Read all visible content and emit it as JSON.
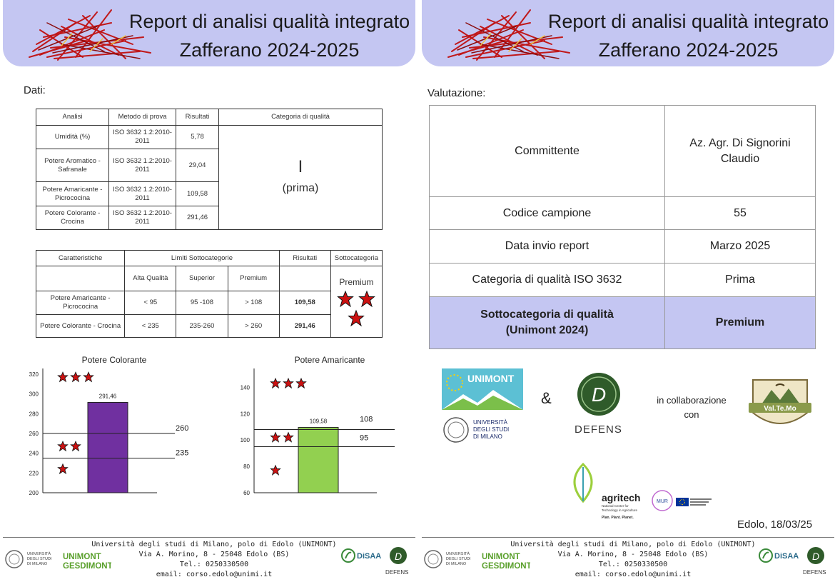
{
  "header": {
    "title_line1": "Report di analisi qualità integrato",
    "title_line2": "Zafferano 2024-2025"
  },
  "left": {
    "data_label": "Dati:",
    "table1": {
      "headers": [
        "Analisi",
        "Metodo di prova",
        "Risultati",
        "Categoria di qualità"
      ],
      "rows": [
        {
          "analisi": "Umidità (%)",
          "metodo": "ISO 3632 1.2:2010-2011",
          "risultato": "5,78"
        },
        {
          "analisi": "Potere Aromatico - Safranale",
          "metodo": "ISO 3632 1.2:2010-2011",
          "risultato": "29,04"
        },
        {
          "analisi": "Potere Amaricante - Picrococina",
          "metodo": "ISO 3632 1.2:2010-2011",
          "risultato": "109,58"
        },
        {
          "analisi": "Potere Colorante - Crocina",
          "metodo": "ISO 3632 1.2:2010-2011",
          "risultato": "291,46"
        }
      ],
      "category": "I",
      "category_sub": "(prima)"
    },
    "table2": {
      "headers": [
        "Caratteristiche",
        "Limiti Sottocategorie",
        "Risultati",
        "Sottocategoria"
      ],
      "subheaders": [
        "Alta Qualità",
        "Superior",
        "Premium"
      ],
      "rows": [
        {
          "caratteristica": "Potere Amaricante - Picrococina",
          "alta": "< 95",
          "superior": "95 -108",
          "premium": "> 108",
          "risultato": "109,58"
        },
        {
          "caratteristica": "Potere Colorante - Crocina",
          "alta": "< 235",
          "superior": "235-260",
          "premium": "> 260",
          "risultato": "291,46"
        }
      ],
      "sottocategoria": "Premium",
      "stars": 3
    }
  },
  "right": {
    "valutazione_label": "Valutazione:",
    "rows": [
      {
        "label": "Committente",
        "value": "Az. Agr. Di Signorini Claudio"
      },
      {
        "label": "Codice campione",
        "value": "55"
      },
      {
        "label": "Data invio report",
        "value": "Marzo 2025"
      },
      {
        "label": "Categoria di qualità ISO 3632",
        "value": "Prima"
      }
    ],
    "highlight": {
      "label_line1": "Sottocategoria di qualità",
      "label_line2": "(Unimont 2024)",
      "value": "Premium"
    },
    "collab_line1": "in collaborazione",
    "collab_line2": "con",
    "amp": "&",
    "edolo": "Edolo, 18/03/25",
    "logos": {
      "unimont_badge": "UNIMONT",
      "unimi": [
        "UNIVERSITÀ",
        "DEGLI STUDI",
        "DI MILANO"
      ],
      "defens": "DEFENS",
      "valtemo": "Val.Te.Mo",
      "agritech": "agritech",
      "agritech_sub1": "National Center for",
      "agritech_sub2": "Technology in Agriculture",
      "agritech_tag": "Plan. Plant. Planet.",
      "mur": "MUR"
    }
  },
  "footer": {
    "line1": "Università degli studi di Milano, polo di Edolo (UNIMONT)",
    "line2": "Via A. Morino, 8 - 25048 Edolo (BS)",
    "line3": "Tel.: 0250330500",
    "line4": "email: corso.edolo@unimi.it",
    "unimont": "UNIMONT",
    "gesdimont": "GESDIMONT",
    "disaa": "DiSAA",
    "defens": "DEFENS",
    "unimi": [
      "UNIVERSITÀ",
      "DEGLI STUDI",
      "DI MILANO"
    ]
  },
  "chart_data": [
    {
      "type": "bar",
      "title": "Potere Colorante",
      "categories": [
        ""
      ],
      "values": [
        291.46
      ],
      "value_label": "291,46",
      "ylim": [
        200,
        320
      ],
      "yticks": [
        200,
        220,
        240,
        260,
        280,
        300,
        320
      ],
      "thresholds": [
        {
          "value": 260,
          "label": "260"
        },
        {
          "value": 235,
          "label": "235"
        }
      ],
      "star_bands": [
        {
          "stars": 3,
          "y": 317
        },
        {
          "stars": 2,
          "y": 247
        },
        {
          "stars": 1,
          "y": 224
        }
      ],
      "color": "#7030a0"
    },
    {
      "type": "bar",
      "title": "Potere Amaricante",
      "categories": [
        ""
      ],
      "values": [
        109.58
      ],
      "value_label": "109,58",
      "ylim": [
        60,
        150
      ],
      "yticks": [
        60,
        80,
        100,
        120,
        140
      ],
      "thresholds": [
        {
          "value": 108,
          "label": "108"
        },
        {
          "value": 95,
          "label": "95"
        }
      ],
      "star_bands": [
        {
          "stars": 3,
          "y": 143
        },
        {
          "stars": 2,
          "y": 102
        },
        {
          "stars": 1,
          "y": 77
        }
      ],
      "color": "#92d050"
    }
  ]
}
